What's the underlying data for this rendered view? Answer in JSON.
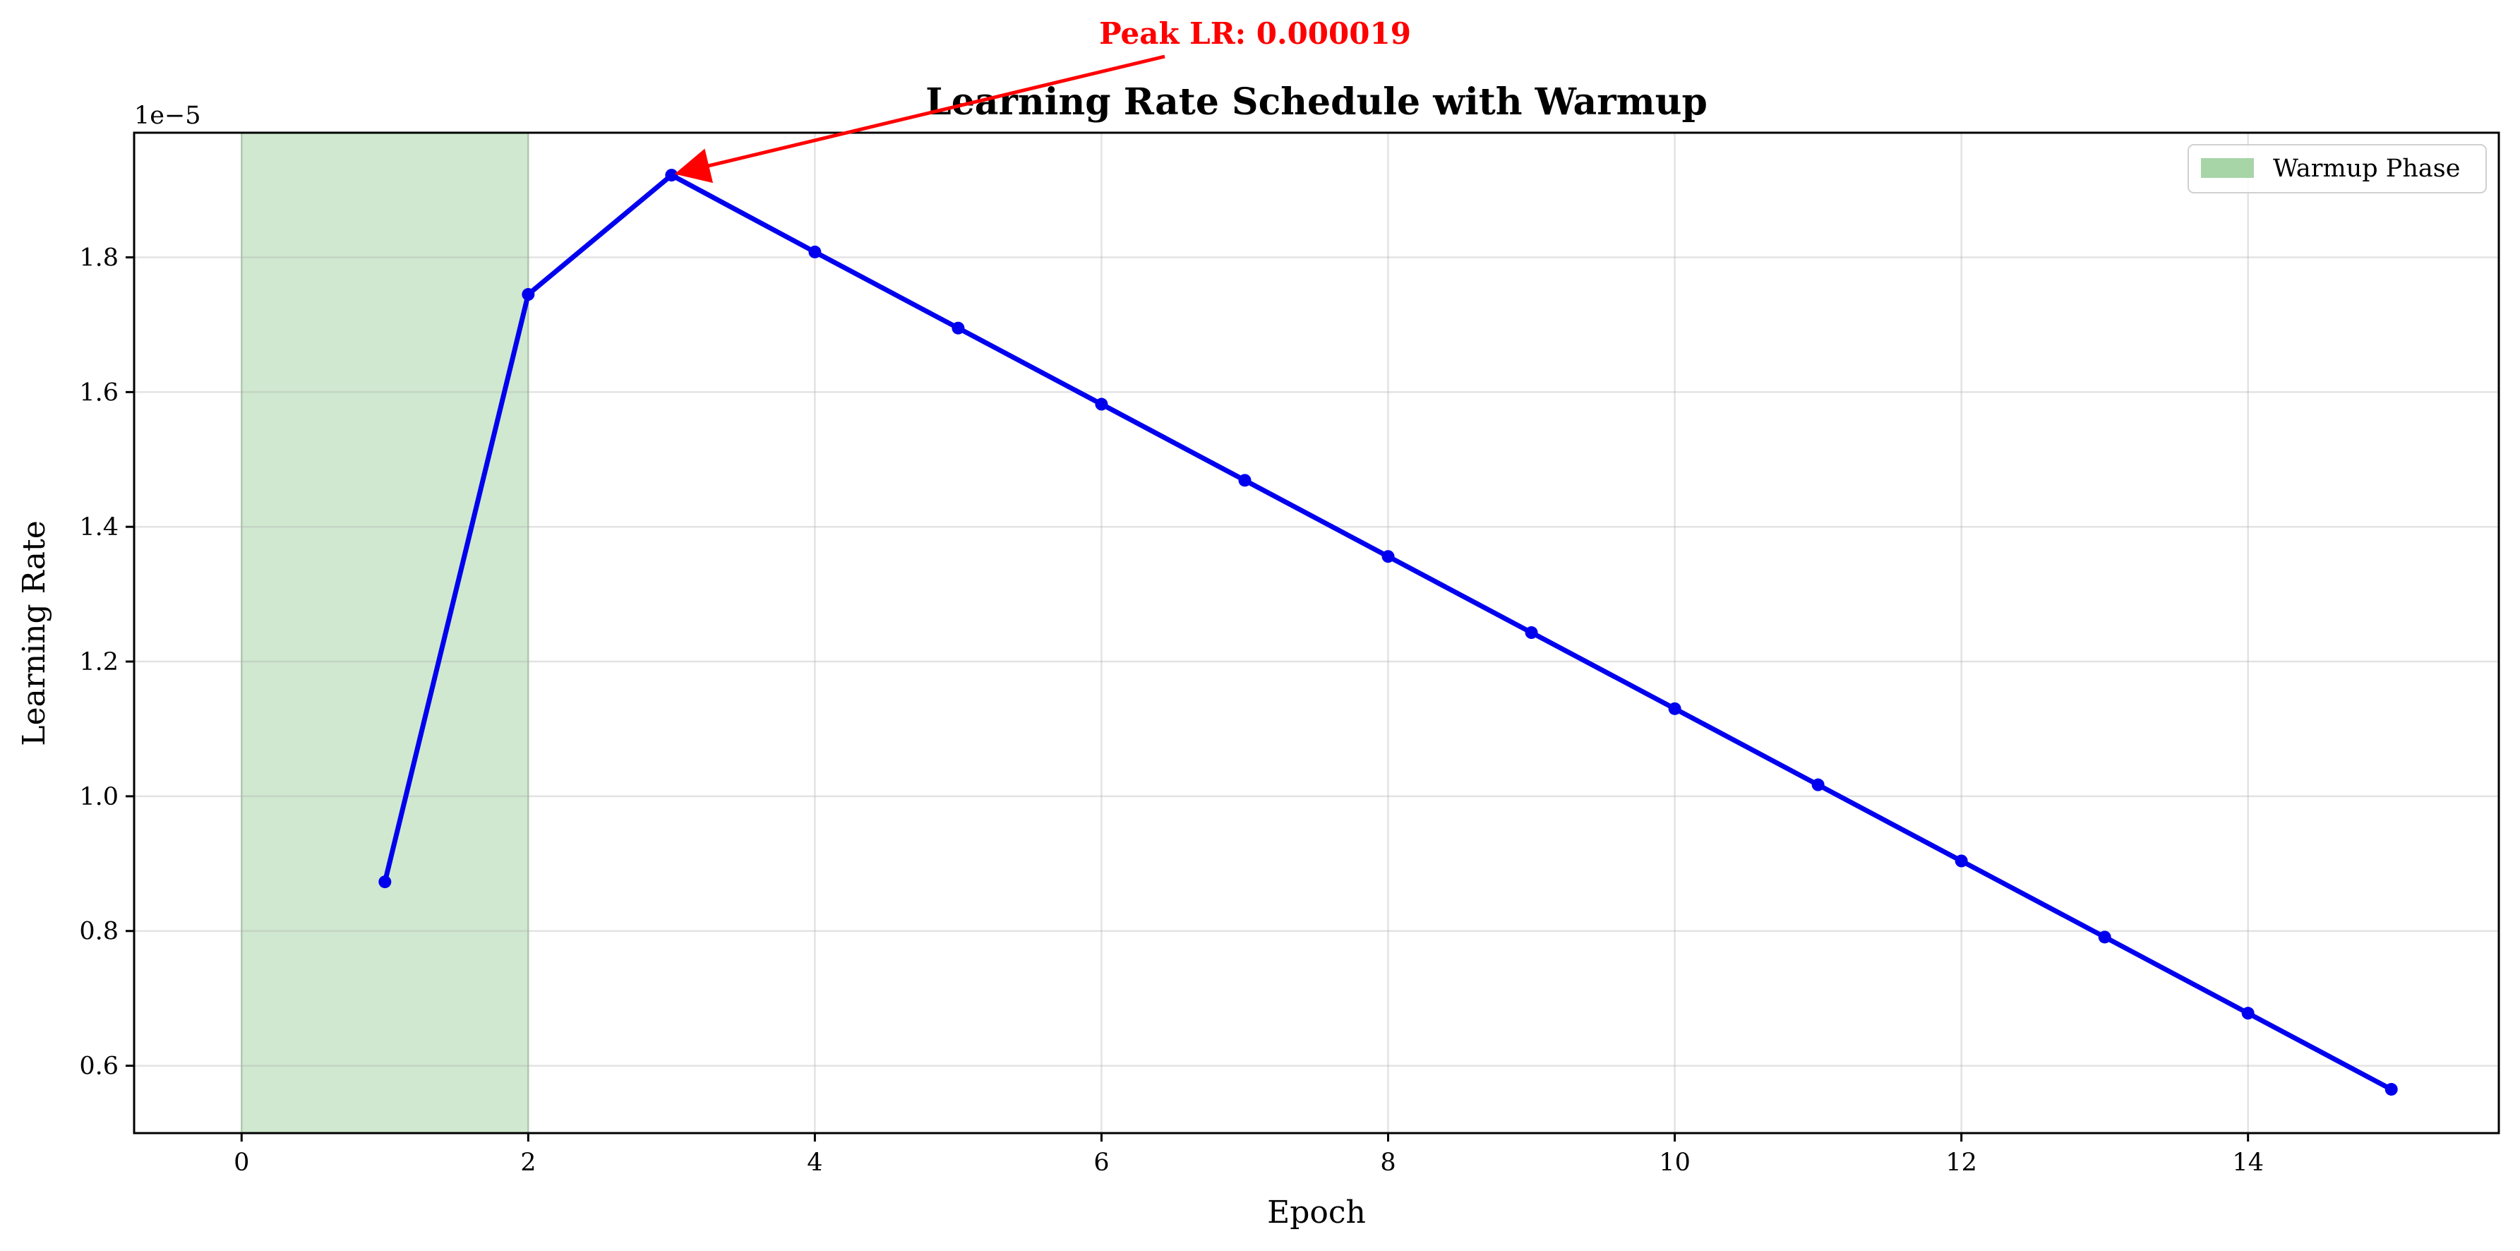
{
  "chart_data": {
    "type": "line",
    "title": "Learning Rate Schedule with Warmup",
    "xlabel": "Epoch",
    "ylabel": "Learning Rate",
    "y_scale_label": "1e−5",
    "xlim": [
      -0.75,
      15.75
    ],
    "ylim": [
      0.5,
      1.985
    ],
    "xticks": [
      0,
      2,
      4,
      6,
      8,
      10,
      12,
      14
    ],
    "yticks": [
      0.6,
      0.8,
      1.0,
      1.2,
      1.4,
      1.6,
      1.8
    ],
    "grid": true,
    "line_color": "#0000ee",
    "series": [
      {
        "x": [
          1,
          2,
          3,
          4,
          5,
          6,
          7,
          8,
          9,
          10,
          11,
          12,
          13,
          14,
          15
        ],
        "values": [
          0.873,
          1.745,
          1.922,
          1.808,
          1.695,
          1.582,
          1.469,
          1.356,
          1.243,
          1.13,
          1.017,
          0.904,
          0.791,
          0.678,
          0.565
        ]
      }
    ],
    "warmup_region": {
      "x_start": 0,
      "x_end": 2,
      "color": "#a8d5a8"
    },
    "legend": {
      "position": "top-right",
      "entries": [
        {
          "label": "Warmup Phase",
          "color": "#a8d5a8"
        }
      ]
    },
    "annotation": {
      "text": "Peak LR: 0.000019",
      "x": 3,
      "y": 1.922,
      "color": "#ff0000"
    }
  }
}
